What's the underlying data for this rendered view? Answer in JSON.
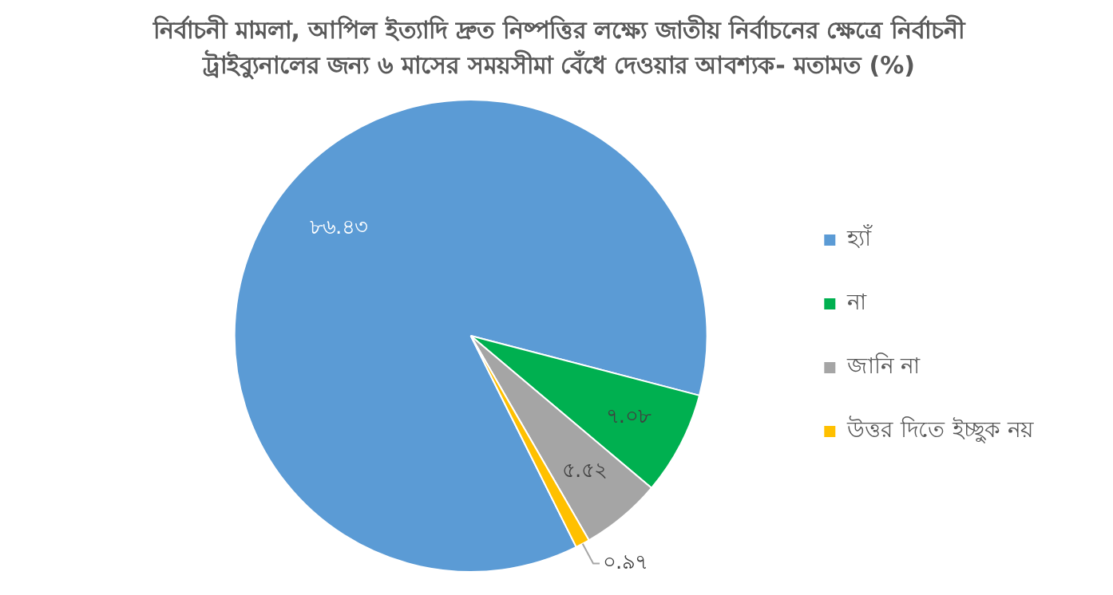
{
  "chart_data": {
    "type": "pie",
    "title": "নির্বাচনী মামলা, আপিল ইত্যাদি দ্রুত নিষ্পত্তির লক্ষ্যে জাতীয় নির্বাচনের ক্ষেত্রে নির্বাচনী ট্রাইব্যুনালের জন্য ৬ মাসের সময়সীমা বেঁধে দেওয়ার আবশ্যক- মতামত (%)",
    "categories": [
      "হ্যাঁ",
      "না",
      "জানি না",
      "উত্তর দিতে ইচ্ছুক নয়"
    ],
    "values": [
      86.43,
      7.08,
      5.52,
      0.97
    ],
    "colors": [
      "#5b9bd5",
      "#00b050",
      "#a5a5a5",
      "#ffc000"
    ],
    "value_labels": [
      "৮৬.৪৩",
      "৭.০৮",
      "৫.৫২",
      "০.৯৭"
    ],
    "legend": "right"
  }
}
